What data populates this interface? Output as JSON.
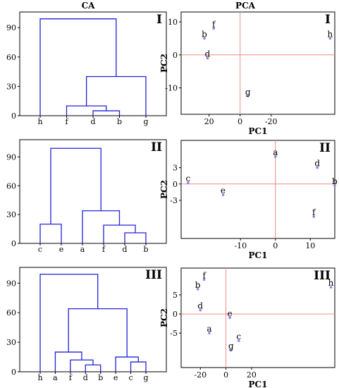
{
  "headers": {
    "ca": "CA",
    "pca": "PCA"
  },
  "chart_data": [
    {
      "id": "CA-I",
      "type": "dendrogram",
      "panel_label": "I",
      "yticks": [
        0,
        30,
        60,
        90
      ],
      "ylim": [
        0,
        106
      ],
      "leaves": [
        "h",
        "f",
        "d",
        "b",
        "g"
      ],
      "links": [
        {
          "a": "d",
          "b": "b",
          "height": 5
        },
        {
          "a": "f",
          "b": "d-b",
          "height": 10
        },
        {
          "a": "f-d-b",
          "b": "g",
          "height": 40
        },
        {
          "a": "h",
          "b": "f-d-b-g",
          "height": 99
        }
      ]
    },
    {
      "id": "CA-II",
      "type": "dendrogram",
      "panel_label": "II",
      "yticks": [
        0,
        30,
        60,
        90
      ],
      "ylim": [
        0,
        108
      ],
      "leaves": [
        "c",
        "e",
        "a",
        "f",
        "d",
        "b"
      ],
      "links": [
        {
          "a": "d",
          "b": "b",
          "height": 11
        },
        {
          "a": "f",
          "b": "d-b",
          "height": 19
        },
        {
          "a": "c",
          "b": "e",
          "height": 20
        },
        {
          "a": "a",
          "b": "f-d-b",
          "height": 34
        },
        {
          "a": "c-e",
          "b": "a-f-d-b",
          "height": 99
        }
      ]
    },
    {
      "id": "CA-III",
      "type": "dendrogram",
      "panel_label": "III",
      "yticks": [
        0,
        30,
        60,
        90
      ],
      "ylim": [
        0,
        106
      ],
      "leaves": [
        "h",
        "a",
        "f",
        "d",
        "b",
        "e",
        "c",
        "g"
      ],
      "links": [
        {
          "a": "d",
          "b": "b",
          "height": 7
        },
        {
          "a": "c",
          "b": "g",
          "height": 10
        },
        {
          "a": "f",
          "b": "d-b",
          "height": 12
        },
        {
          "a": "e",
          "b": "c-g",
          "height": 15
        },
        {
          "a": "a",
          "b": "f-d-b",
          "height": 20
        },
        {
          "a": "a-f-d-b",
          "b": "e-c-g",
          "height": 64
        },
        {
          "a": "h",
          "b": "a-f-d-b-e-c-g",
          "height": 99
        }
      ]
    },
    {
      "id": "PCA-I",
      "type": "scatter",
      "panel_label": "I",
      "xlabel": "PC1",
      "ylabel": "PC2",
      "xlim": [
        38,
        -61
      ],
      "ylim": [
        -18,
        13
      ],
      "xticks": [
        {
          "v": 20,
          "t": "20"
        },
        {
          "v": 0,
          "t": "0"
        },
        {
          "v": -20,
          "t": "-20"
        }
      ],
      "yticks": [
        {
          "v": 10,
          "t": "10"
        },
        {
          "v": 0,
          "t": "0"
        },
        {
          "v": -10,
          "t": "-10"
        }
      ],
      "points": [
        {
          "label": "f",
          "x": 17,
          "y": 8
        },
        {
          "label": "b",
          "x": 23,
          "y": 5
        },
        {
          "label": "d",
          "x": 21,
          "y": -1
        },
        {
          "label": "g",
          "x": -5,
          "y": -12.5
        },
        {
          "label": "h",
          "x": -58,
          "y": 5
        }
      ]
    },
    {
      "id": "PCA-II",
      "type": "scatter",
      "panel_label": "II",
      "xlabel": "PC1",
      "ylabel": "PC2",
      "xlim": [
        -27,
        17
      ],
      "ylim": [
        -10,
        8
      ],
      "xticks": [
        {
          "v": -10,
          "t": "-10"
        },
        {
          "v": 0,
          "t": "0"
        },
        {
          "v": 10,
          "t": "10"
        }
      ],
      "yticks": [
        {
          "v": 3,
          "t": "3"
        },
        {
          "v": 0,
          "t": "0"
        },
        {
          "v": -3,
          "t": "-3"
        }
      ],
      "points": [
        {
          "label": "a",
          "x": 0,
          "y": 5
        },
        {
          "label": "d",
          "x": 12,
          "y": 3
        },
        {
          "label": "c",
          "x": -25,
          "y": 0.2
        },
        {
          "label": "b",
          "x": 17,
          "y": -0.3
        },
        {
          "label": "e",
          "x": -15,
          "y": -2
        },
        {
          "label": "f",
          "x": 11,
          "y": -6
        }
      ]
    },
    {
      "id": "PCA-III",
      "type": "scatter",
      "panel_label": "III",
      "xlabel": "PC1",
      "ylabel": "PC2",
      "xlim": [
        -35,
        85
      ],
      "ylim": [
        -14,
        12
      ],
      "xticks": [
        {
          "v": -20,
          "t": "-20"
        },
        {
          "v": 0,
          "t": "0"
        },
        {
          "v": 20,
          "t": "20"
        }
      ],
      "yticks": [
        {
          "v": 5,
          "t": "5"
        },
        {
          "v": 0,
          "t": "0"
        },
        {
          "v": -5,
          "t": "-5"
        }
      ],
      "points": [
        {
          "label": "f",
          "x": -17,
          "y": 9
        },
        {
          "label": "b",
          "x": -22,
          "y": 6.5
        },
        {
          "label": "h",
          "x": 82,
          "y": 7
        },
        {
          "label": "d",
          "x": -20,
          "y": 1
        },
        {
          "label": "e",
          "x": 3,
          "y": -1
        },
        {
          "label": "a",
          "x": -13,
          "y": -5
        },
        {
          "label": "c",
          "x": 10,
          "y": -7
        },
        {
          "label": "g",
          "x": 4,
          "y": -9.5
        }
      ]
    }
  ]
}
